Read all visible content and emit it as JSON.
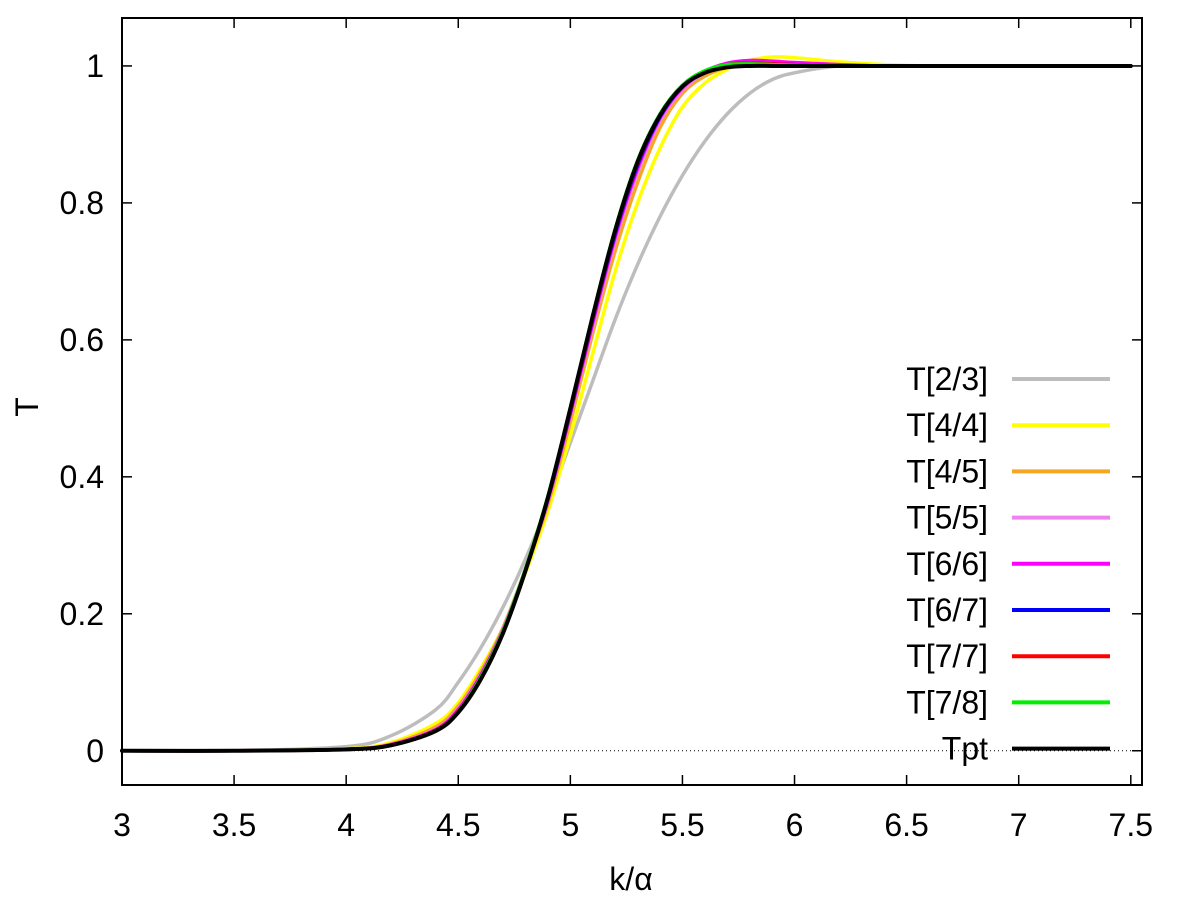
{
  "chart_data": {
    "type": "line",
    "title": "",
    "xlabel": "k/α",
    "ylabel": "T",
    "xlim": [
      3,
      7.55
    ],
    "ylim": [
      -0.05,
      1.07
    ],
    "x_ticks": [
      3,
      3.5,
      4,
      4.5,
      5,
      5.5,
      6,
      6.5,
      7,
      7.5
    ],
    "x_tick_labels": [
      "3",
      "3.5",
      "4",
      "4.5",
      "5",
      "5.5",
      "6",
      "6.5",
      "7",
      "7.5"
    ],
    "y_ticks": [
      0,
      0.2,
      0.4,
      0.6,
      0.8,
      1
    ],
    "y_tick_labels": [
      "0",
      "0.2",
      "0.4",
      "0.6",
      "0.8",
      "1"
    ],
    "zero_line": true,
    "grid": false,
    "legend_position": "right",
    "x": [
      3,
      3.5,
      4,
      4.2,
      4.4,
      4.5,
      4.6,
      4.7,
      4.8,
      4.9,
      5,
      5.1,
      5.2,
      5.3,
      5.4,
      5.5,
      5.6,
      5.7,
      5.8,
      5.9,
      6,
      6.2,
      6.4,
      6.6,
      7,
      7.5
    ],
    "series": [
      {
        "name": "T[2/3]",
        "color": "#bdbdbd",
        "values": [
          0,
          0,
          0.006,
          0.022,
          0.06,
          0.1,
          0.15,
          0.21,
          0.28,
          0.36,
          0.45,
          0.54,
          0.63,
          0.71,
          0.78,
          0.84,
          0.89,
          0.93,
          0.96,
          0.98,
          0.99,
          1.0,
          1.0,
          1.0,
          1.0,
          1.0
        ]
      },
      {
        "name": "T[4/4]",
        "color": "#ffff00",
        "values": [
          0,
          0,
          0.003,
          0.012,
          0.04,
          0.07,
          0.12,
          0.18,
          0.26,
          0.35,
          0.46,
          0.58,
          0.7,
          0.8,
          0.88,
          0.94,
          0.975,
          0.995,
          1.008,
          1.013,
          1.012,
          1.006,
          1.002,
          1.0,
          1.0,
          1.0
        ]
      },
      {
        "name": "T[4/5]",
        "color": "#f5a623",
        "values": [
          0,
          0,
          0.002,
          0.01,
          0.035,
          0.065,
          0.115,
          0.18,
          0.265,
          0.36,
          0.48,
          0.61,
          0.73,
          0.83,
          0.91,
          0.96,
          0.985,
          0.998,
          1.003,
          1.004,
          1.003,
          1.001,
          1.0,
          1.0,
          1.0,
          1.0
        ]
      },
      {
        "name": "T[5/5]",
        "color": "#ee82ee",
        "values": [
          0,
          0,
          0.002,
          0.009,
          0.032,
          0.062,
          0.112,
          0.178,
          0.265,
          0.365,
          0.49,
          0.62,
          0.745,
          0.845,
          0.92,
          0.965,
          0.99,
          1.002,
          1.006,
          1.006,
          1.004,
          1.002,
          1.0,
          1.0,
          1.0,
          1.0
        ]
      },
      {
        "name": "T[6/6]",
        "color": "#ff00ff",
        "values": [
          0,
          0,
          0.002,
          0.009,
          0.031,
          0.06,
          0.11,
          0.176,
          0.264,
          0.366,
          0.492,
          0.625,
          0.75,
          0.85,
          0.924,
          0.968,
          0.992,
          1.004,
          1.008,
          1.007,
          1.005,
          1.002,
          1.0,
          1.0,
          1.0,
          1.0
        ]
      },
      {
        "name": "T[6/7]",
        "color": "#0000ff",
        "values": [
          0,
          0,
          0.002,
          0.008,
          0.03,
          0.058,
          0.108,
          0.175,
          0.264,
          0.368,
          0.495,
          0.63,
          0.755,
          0.855,
          0.926,
          0.97,
          0.992,
          1.002,
          1.004,
          1.003,
          1.002,
          1.0,
          1.0,
          1.0,
          1.0,
          1.0
        ]
      },
      {
        "name": "T[7/7]",
        "color": "#ff0000",
        "values": [
          0,
          0,
          0.002,
          0.008,
          0.03,
          0.058,
          0.108,
          0.175,
          0.265,
          0.37,
          0.497,
          0.632,
          0.758,
          0.858,
          0.928,
          0.971,
          0.992,
          1.002,
          1.004,
          1.003,
          1.002,
          1.0,
          1.0,
          1.0,
          1.0,
          1.0
        ]
      },
      {
        "name": "T[7/8]",
        "color": "#00ee00",
        "values": [
          0,
          0,
          0.002,
          0.008,
          0.029,
          0.057,
          0.107,
          0.175,
          0.266,
          0.372,
          0.5,
          0.636,
          0.762,
          0.862,
          0.93,
          0.972,
          0.993,
          1.002,
          1.003,
          1.002,
          1.001,
          1.0,
          1.0,
          1.0,
          1.0,
          1.0
        ]
      },
      {
        "name": "Tpt",
        "color": "#000000",
        "values": [
          0,
          0,
          0.002,
          0.008,
          0.029,
          0.056,
          0.104,
          0.172,
          0.263,
          0.37,
          0.5,
          0.635,
          0.76,
          0.86,
          0.928,
          0.97,
          0.99,
          0.998,
          1.0,
          1.0,
          1.0,
          1.0,
          1.0,
          1.0,
          1.0,
          1.0
        ]
      }
    ]
  }
}
